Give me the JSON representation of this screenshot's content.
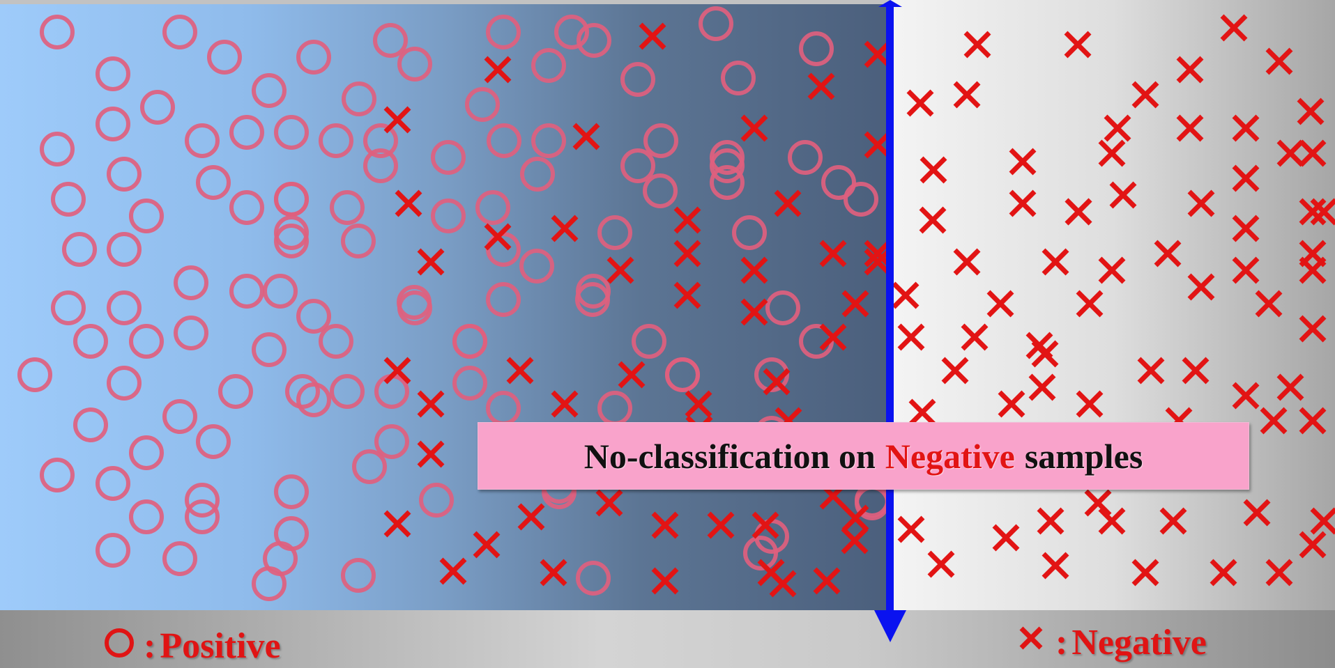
{
  "callout": {
    "prefix": "No-classification on",
    "highlight": "Negative",
    "suffix": "samples"
  },
  "legend": {
    "positive": "Positive",
    "negative": "Negative",
    "colon": ":"
  },
  "colors": {
    "positive_marker": "#e0607e",
    "negative_marker": "#e21414",
    "boundary": "#0a12f0",
    "callout_bg": "#f9a3cb"
  },
  "markers": {
    "positive_icon": "ring-icon",
    "negative_icon": "cross-icon"
  }
}
